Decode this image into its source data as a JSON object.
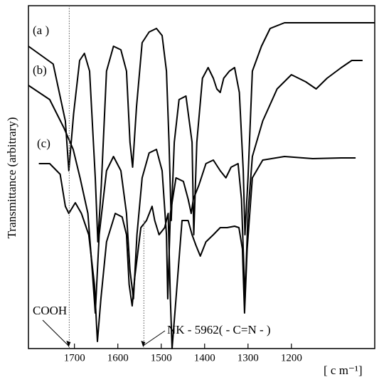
{
  "chart_data": {
    "type": "line",
    "y_label": "Transmittance (arbitrary)",
    "x_label": "[ c m⁻¹]",
    "xlim": [
      1806,
      1008
    ],
    "ylim": [
      0,
      482
    ],
    "xticks": [
      1700,
      1600,
      1500,
      1400,
      1300,
      1200
    ],
    "series": [
      {
        "name": "(a )",
        "color": "#000000",
        "x": [
          1806,
          1749,
          1721,
          1713,
          1702,
          1688,
          1677,
          1665,
          1652,
          1646,
          1638,
          1626,
          1610,
          1593,
          1580,
          1572,
          1566,
          1557,
          1544,
          1528,
          1511,
          1498,
          1488,
          1482,
          1477,
          1470,
          1459,
          1443,
          1429,
          1425,
          1418,
          1405,
          1392,
          1380,
          1372,
          1364,
          1356,
          1343,
          1331,
          1320,
          1311,
          1307,
          1300,
          1290,
          1269,
          1249,
          1216,
          1151,
          1085,
          1008
        ],
        "values": [
          425,
          400,
          320,
          250,
          330,
          405,
          415,
          390,
          240,
          150,
          230,
          390,
          425,
          420,
          390,
          290,
          255,
          340,
          430,
          445,
          450,
          440,
          390,
          290,
          180,
          290,
          350,
          355,
          290,
          160,
          290,
          380,
          395,
          380,
          365,
          360,
          380,
          390,
          395,
          360,
          250,
          160,
          240,
          390,
          425,
          450,
          458,
          458,
          458,
          458
        ]
      },
      {
        "name": "(b)",
        "color": "#000000",
        "x": [
          1806,
          1757,
          1724,
          1703,
          1687,
          1669,
          1659,
          1652,
          1643,
          1626,
          1610,
          1593,
          1580,
          1572,
          1564,
          1556,
          1544,
          1528,
          1511,
          1498,
          1488,
          1485,
          1479,
          1466,
          1449,
          1438,
          1431,
          1426,
          1413,
          1397,
          1380,
          1364,
          1351,
          1339,
          1323,
          1315,
          1307,
          1300,
          1290,
          1266,
          1233,
          1200,
          1167,
          1143,
          1118,
          1085,
          1061,
          1036
        ],
        "values": [
          370,
          350,
          310,
          280,
          240,
          190,
          110,
          50,
          160,
          250,
          270,
          250,
          190,
          110,
          70,
          160,
          240,
          275,
          280,
          250,
          160,
          70,
          190,
          240,
          235,
          210,
          190,
          210,
          230,
          260,
          265,
          250,
          240,
          255,
          260,
          210,
          70,
          190,
          270,
          320,
          365,
          385,
          375,
          365,
          380,
          395,
          405,
          405
        ]
      },
      {
        "name": "(c)",
        "color": "#000000",
        "x": [
          1782,
          1757,
          1733,
          1721,
          1713,
          1698,
          1684,
          1667,
          1654,
          1647,
          1639,
          1626,
          1606,
          1590,
          1580,
          1574,
          1567,
          1561,
          1547,
          1534,
          1521,
          1515,
          1505,
          1492,
          1484,
          1479,
          1475,
          1466,
          1452,
          1438,
          1429,
          1420,
          1410,
          1397,
          1380,
          1364,
          1348,
          1331,
          1321,
          1313,
          1308,
          1302,
          1290,
          1266,
          1216,
          1151,
          1085,
          1052
        ],
        "values": [
          260,
          260,
          245,
          200,
          190,
          205,
          190,
          160,
          90,
          10,
          70,
          150,
          190,
          185,
          160,
          90,
          60,
          100,
          170,
          180,
          200,
          180,
          160,
          170,
          190,
          70,
          0,
          70,
          180,
          180,
          160,
          145,
          130,
          150,
          160,
          170,
          170,
          172,
          170,
          140,
          50,
          140,
          240,
          265,
          270,
          267,
          268,
          268
        ]
      }
    ],
    "annotations": [
      {
        "text": "COOH",
        "x": 1712
      },
      {
        "text": "NK - 5962( - C=N - )",
        "x": 1540
      }
    ]
  }
}
